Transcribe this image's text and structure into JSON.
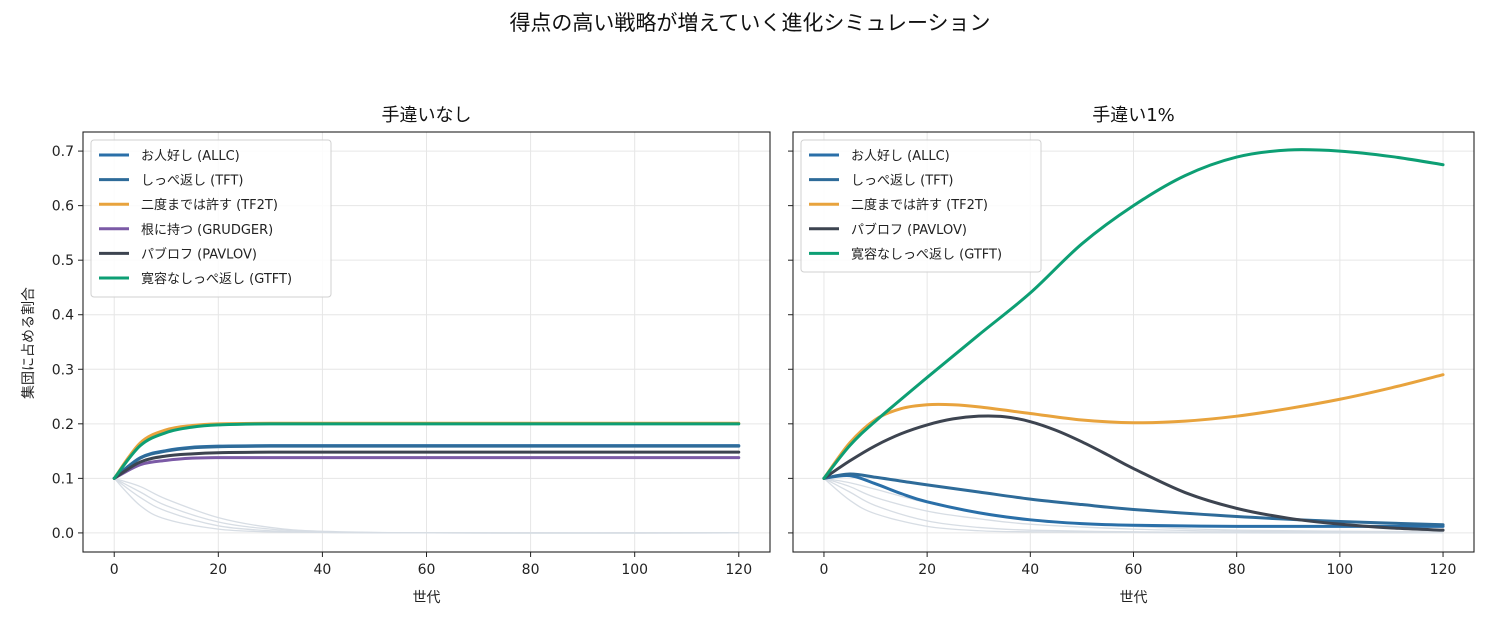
{
  "figure": {
    "suptitle": "得点の高い戦略が増えていく進化シミュレーション",
    "shared_ylabel": "集団に占める割合"
  },
  "chart_data": [
    {
      "type": "line",
      "title": "手違いなし",
      "xlabel": "世代",
      "ylabel": "集団に占める割合",
      "xlim": [
        -6,
        126
      ],
      "ylim": [
        -0.035,
        0.735
      ],
      "xticks": [
        0,
        20,
        40,
        60,
        80,
        100,
        120
      ],
      "yticks": [
        0.0,
        0.1,
        0.2,
        0.3,
        0.4,
        0.5,
        0.6,
        0.7
      ],
      "grid": true,
      "legend_position": "upper-left",
      "series": [
        {
          "name": "お人好し (ALLC)",
          "color": "#2a6fa8",
          "x": [
            0,
            5,
            10,
            15,
            20,
            30,
            60,
            120
          ],
          "y": [
            0.1,
            0.138,
            0.151,
            0.157,
            0.159,
            0.16,
            0.16,
            0.16
          ]
        },
        {
          "name": "しっぺ返し (TFT)",
          "color": "#2e6b99",
          "x": [
            0,
            5,
            10,
            15,
            20,
            30,
            60,
            120
          ],
          "y": [
            0.1,
            0.137,
            0.15,
            0.156,
            0.158,
            0.159,
            0.159,
            0.159
          ]
        },
        {
          "name": "二度までは許す (TF2T)",
          "color": "#e8a33d",
          "x": [
            0,
            5,
            10,
            15,
            20,
            30,
            60,
            120
          ],
          "y": [
            0.1,
            0.165,
            0.189,
            0.197,
            0.2,
            0.201,
            0.201,
            0.201
          ]
        },
        {
          "name": "根に持つ (GRUDGER)",
          "color": "#7b5aa6",
          "x": [
            0,
            5,
            10,
            15,
            20,
            30,
            60,
            120
          ],
          "y": [
            0.1,
            0.125,
            0.133,
            0.137,
            0.138,
            0.138,
            0.138,
            0.138
          ]
        },
        {
          "name": "パブロフ (PAVLOV)",
          "color": "#3d4450",
          "x": [
            0,
            5,
            10,
            15,
            20,
            30,
            60,
            120
          ],
          "y": [
            0.1,
            0.13,
            0.141,
            0.145,
            0.147,
            0.148,
            0.148,
            0.148
          ]
        },
        {
          "name": "寛容なしっぺ返し (GTFT)",
          "color": "#0d9f74",
          "x": [
            0,
            5,
            10,
            15,
            20,
            30,
            60,
            120
          ],
          "y": [
            0.1,
            0.16,
            0.184,
            0.194,
            0.198,
            0.2,
            0.2,
            0.2
          ]
        }
      ],
      "background_series": [
        {
          "color": "#d7dde4",
          "x": [
            0,
            5,
            10,
            20,
            30,
            40,
            60,
            120
          ],
          "y": [
            0.1,
            0.05,
            0.025,
            0.007,
            0.002,
            0.001,
            0.0,
            0.0
          ]
        },
        {
          "color": "#d7dde4",
          "x": [
            0,
            5,
            10,
            20,
            30,
            40,
            60,
            120
          ],
          "y": [
            0.1,
            0.065,
            0.04,
            0.013,
            0.004,
            0.001,
            0.0,
            0.0
          ]
        },
        {
          "color": "#d7dde4",
          "x": [
            0,
            5,
            10,
            20,
            30,
            40,
            60,
            120
          ],
          "y": [
            0.1,
            0.075,
            0.05,
            0.02,
            0.007,
            0.002,
            0.0,
            0.0
          ]
        },
        {
          "color": "#d7dde4",
          "x": [
            0,
            5,
            10,
            20,
            30,
            40,
            60,
            120
          ],
          "y": [
            0.1,
            0.085,
            0.062,
            0.028,
            0.01,
            0.003,
            0.0,
            0.0
          ]
        }
      ]
    },
    {
      "type": "line",
      "title": "手違い1%",
      "xlabel": "世代",
      "ylabel": "",
      "xlim": [
        -6,
        126
      ],
      "ylim": [
        -0.035,
        0.735
      ],
      "xticks": [
        0,
        20,
        40,
        60,
        80,
        100,
        120
      ],
      "yticks": [
        0.0,
        0.1,
        0.2,
        0.3,
        0.4,
        0.5,
        0.6,
        0.7
      ],
      "grid": true,
      "legend_position": "upper-left",
      "series": [
        {
          "name": "お人好し (ALLC)",
          "color": "#2a6fa8",
          "x": [
            0,
            5,
            10,
            15,
            20,
            30,
            40,
            50,
            60,
            80,
            100,
            120
          ],
          "y": [
            0.1,
            0.105,
            0.09,
            0.072,
            0.057,
            0.037,
            0.024,
            0.017,
            0.014,
            0.012,
            0.012,
            0.012
          ]
        },
        {
          "name": "しっぺ返し (TFT)",
          "color": "#2e6b99",
          "x": [
            0,
            5,
            10,
            15,
            20,
            30,
            40,
            50,
            60,
            80,
            100,
            120
          ],
          "y": [
            0.1,
            0.108,
            0.102,
            0.095,
            0.088,
            0.075,
            0.062,
            0.052,
            0.043,
            0.03,
            0.021,
            0.015
          ]
        },
        {
          "name": "二度までは許す (TF2T)",
          "color": "#e8a33d",
          "x": [
            0,
            5,
            10,
            15,
            20,
            25,
            30,
            40,
            50,
            60,
            70,
            80,
            90,
            100,
            110,
            120
          ],
          "y": [
            0.1,
            0.165,
            0.208,
            0.228,
            0.235,
            0.235,
            0.231,
            0.219,
            0.207,
            0.202,
            0.205,
            0.214,
            0.228,
            0.245,
            0.266,
            0.29
          ]
        },
        {
          "name": "パブロフ (PAVLOV)",
          "color": "#3d4450",
          "x": [
            0,
            5,
            10,
            15,
            20,
            25,
            30,
            35,
            40,
            45,
            50,
            55,
            60,
            70,
            80,
            90,
            100,
            110,
            120
          ],
          "y": [
            0.1,
            0.132,
            0.16,
            0.182,
            0.198,
            0.209,
            0.214,
            0.213,
            0.204,
            0.188,
            0.167,
            0.143,
            0.118,
            0.074,
            0.045,
            0.027,
            0.016,
            0.009,
            0.005
          ]
        },
        {
          "name": "寛容なしっぺ返し (GTFT)",
          "color": "#0d9f74",
          "x": [
            0,
            5,
            10,
            20,
            30,
            40,
            50,
            60,
            70,
            80,
            90,
            100,
            110,
            120
          ],
          "y": [
            0.1,
            0.16,
            0.205,
            0.285,
            0.363,
            0.44,
            0.53,
            0.6,
            0.655,
            0.689,
            0.702,
            0.7,
            0.69,
            0.675
          ]
        }
      ],
      "background_series": [
        {
          "color": "#d7dde4",
          "x": [
            0,
            5,
            10,
            20,
            30,
            40,
            60,
            80,
            120
          ],
          "y": [
            0.1,
            0.06,
            0.035,
            0.012,
            0.004,
            0.002,
            0.001,
            0.0,
            0.0
          ]
        },
        {
          "color": "#d7dde4",
          "x": [
            0,
            5,
            10,
            20,
            30,
            40,
            60,
            80,
            120
          ],
          "y": [
            0.1,
            0.075,
            0.05,
            0.022,
            0.01,
            0.005,
            0.002,
            0.001,
            0.0
          ]
        },
        {
          "color": "#d7dde4",
          "x": [
            0,
            5,
            10,
            20,
            30,
            40,
            60,
            80,
            120
          ],
          "y": [
            0.1,
            0.085,
            0.065,
            0.04,
            0.026,
            0.016,
            0.007,
            0.003,
            0.001
          ]
        },
        {
          "color": "#d7dde4",
          "x": [
            0,
            5,
            10,
            20,
            30,
            40,
            60,
            80,
            120
          ],
          "y": [
            0.1,
            0.092,
            0.08,
            0.055,
            0.038,
            0.025,
            0.012,
            0.005,
            0.002
          ]
        }
      ]
    }
  ]
}
